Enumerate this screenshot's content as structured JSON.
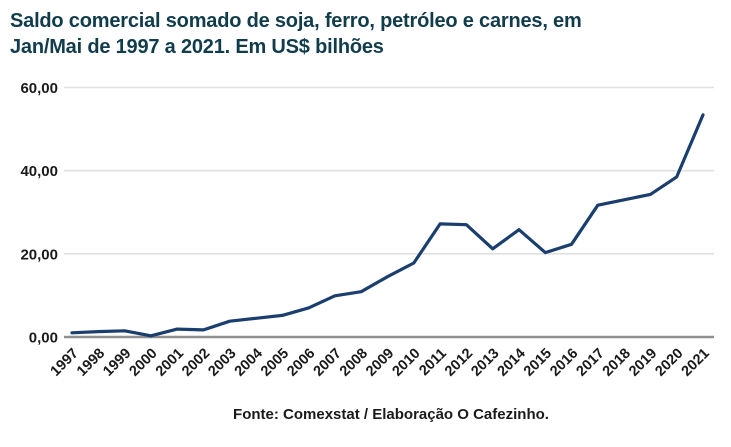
{
  "header": {
    "title_line1": "Saldo comercial somado de soja, ferro, petróleo e carnes, em",
    "title_line2": "Jan/Mai de 1997 a 2021. Em US$ bilhões"
  },
  "chart_data": {
    "type": "line",
    "title": "Saldo comercial somado de soja, ferro, petróleo e carnes, em Jan/Mai de 1997 a 2021. Em US$ bilhões",
    "categories": [
      "1997",
      "1998",
      "1999",
      "2000",
      "2001",
      "2002",
      "2003",
      "2004",
      "2005",
      "2006",
      "2007",
      "2008",
      "2009",
      "2010",
      "2011",
      "2012",
      "2013",
      "2014",
      "2015",
      "2016",
      "2017",
      "2018",
      "2019",
      "2020",
      "2021"
    ],
    "values": [
      1.0,
      1.3,
      1.5,
      0.3,
      1.9,
      1.7,
      3.8,
      4.5,
      5.2,
      7.0,
      9.9,
      10.9,
      14.5,
      17.8,
      27.2,
      27.0,
      21.2,
      25.8,
      20.3,
      22.3,
      31.7,
      33.0,
      34.3,
      38.5,
      53.4
    ],
    "xlabel": "",
    "ylabel": "",
    "ylim": [
      0,
      60
    ],
    "y_ticks": [
      {
        "label": "0,00",
        "value": 0
      },
      {
        "label": "20,00",
        "value": 20
      },
      {
        "label": "40,00",
        "value": 40
      },
      {
        "label": "60,00",
        "value": 60
      }
    ],
    "grid": true,
    "legend": false,
    "x_tick_rotation": 45
  },
  "footer": {
    "text": "Fonte: Comexstat / Elaboração O Cafezinho."
  },
  "colors": {
    "title": "#113c4c",
    "line": "#1a3f6e",
    "gridline": "#e0e0e0",
    "baseline": "#8f8f8f",
    "tick_text": "#1a1a1a",
    "background": "#ffffff"
  }
}
